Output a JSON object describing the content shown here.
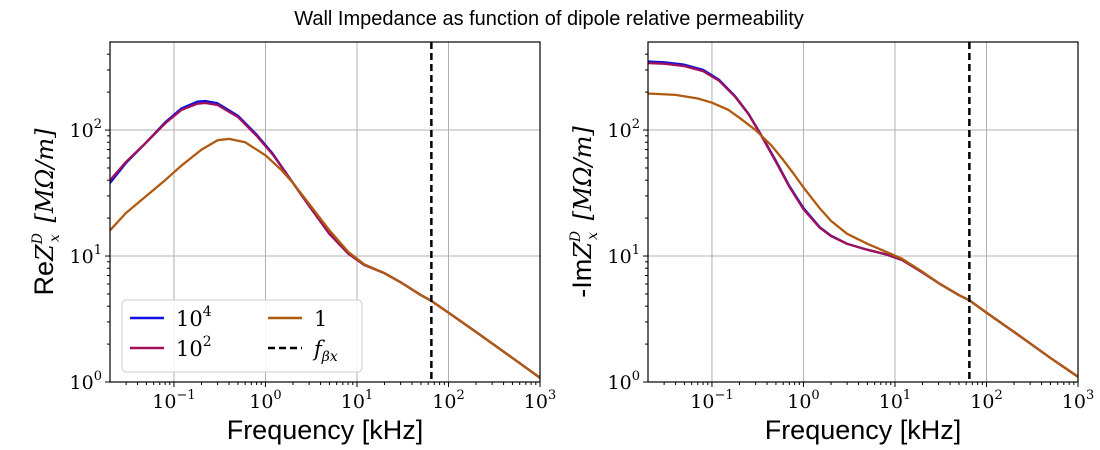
{
  "figure": {
    "suptitle": "Wall Impedance as function of dipole relative permeability"
  },
  "chart_data": [
    {
      "type": "line",
      "id": "real",
      "title": "",
      "xlabel": "Frequency [kHz]",
      "ylabel_prefix": "Re",
      "ylabel_math": "Z",
      "ylabel_sup": "D",
      "ylabel_sub": "x",
      "ylabel_unit": "[MΩ/m]",
      "xscale": "log",
      "yscale": "log",
      "xlim": [
        0.02,
        1000
      ],
      "ylim": [
        1,
        500
      ],
      "grid": true,
      "legend": {
        "placement": "lower-left",
        "ncol": 2,
        "entries": [
          {
            "base": "10",
            "exp": "4",
            "color": "#1010e0",
            "style": "solid"
          },
          {
            "base": "10",
            "exp": "2",
            "color": "#a0105a",
            "style": "solid"
          },
          {
            "base": "1",
            "exp": "",
            "color": "#b05a10",
            "style": "solid"
          },
          {
            "base": "f",
            "exp": "βx",
            "color": "#000000",
            "style": "dashed"
          }
        ]
      },
      "xticks": [
        {
          "base": "10",
          "exp": "−1",
          "value": 0.1
        },
        {
          "base": "10",
          "exp": "0",
          "value": 1
        },
        {
          "base": "10",
          "exp": "1",
          "value": 10
        },
        {
          "base": "10",
          "exp": "2",
          "value": 100
        },
        {
          "base": "10",
          "exp": "3",
          "value": 1000
        }
      ],
      "yticks": [
        {
          "base": "10",
          "exp": "0",
          "value": 1
        },
        {
          "base": "10",
          "exp": "1",
          "value": 10
        },
        {
          "base": "10",
          "exp": "2",
          "value": 100
        }
      ],
      "vline": {
        "x": 65,
        "color": "#000000",
        "style": "dashed"
      },
      "series": [
        {
          "name": "10^4",
          "color": "#1010e0",
          "x": [
            0.02,
            0.03,
            0.05,
            0.08,
            0.12,
            0.18,
            0.22,
            0.3,
            0.5,
            0.8,
            1.2,
            2,
            3,
            5,
            8,
            12,
            20,
            30,
            50,
            65,
            100,
            200,
            500,
            1000
          ],
          "y": [
            38,
            55,
            80,
            115,
            148,
            168,
            170,
            163,
            130,
            92,
            65,
            38,
            25,
            15,
            10.5,
            8.5,
            7.3,
            6.2,
            4.9,
            4.4,
            3.55,
            2.5,
            1.55,
            1.08
          ]
        },
        {
          "name": "10^2",
          "color": "#a0105a",
          "x": [
            0.02,
            0.03,
            0.05,
            0.08,
            0.12,
            0.18,
            0.22,
            0.3,
            0.5,
            0.8,
            1.2,
            2,
            3,
            5,
            8,
            12,
            20,
            30,
            50,
            65,
            100,
            200,
            500,
            1000
          ],
          "y": [
            40,
            56,
            80,
            113,
            144,
            162,
            164,
            158,
            127,
            90,
            64,
            38,
            25,
            15,
            10.5,
            8.5,
            7.3,
            6.2,
            4.9,
            4.4,
            3.55,
            2.5,
            1.55,
            1.08
          ]
        },
        {
          "name": "1",
          "color": "#b05a10",
          "x": [
            0.02,
            0.03,
            0.05,
            0.08,
            0.12,
            0.2,
            0.3,
            0.4,
            0.6,
            1,
            1.5,
            2,
            3,
            5,
            8,
            12,
            20,
            30,
            50,
            65,
            100,
            200,
            500,
            1000
          ],
          "y": [
            16,
            22,
            30,
            40,
            52,
            70,
            83,
            85,
            80,
            63,
            48,
            38,
            26,
            16,
            10.8,
            8.6,
            7.3,
            6.2,
            4.9,
            4.4,
            3.55,
            2.5,
            1.55,
            1.08
          ]
        }
      ]
    },
    {
      "type": "line",
      "id": "imag",
      "title": "",
      "xlabel": "Frequency [kHz]",
      "ylabel_prefix": "-Im",
      "ylabel_math": "Z",
      "ylabel_sup": "D",
      "ylabel_sub": "x",
      "ylabel_unit": "[MΩ/m]",
      "xscale": "log",
      "yscale": "log",
      "xlim": [
        0.02,
        1000
      ],
      "ylim": [
        1,
        500
      ],
      "grid": true,
      "xticks": [
        {
          "base": "10",
          "exp": "−1",
          "value": 0.1
        },
        {
          "base": "10",
          "exp": "0",
          "value": 1
        },
        {
          "base": "10",
          "exp": "1",
          "value": 10
        },
        {
          "base": "10",
          "exp": "2",
          "value": 100
        },
        {
          "base": "10",
          "exp": "3",
          "value": 1000
        }
      ],
      "yticks": [
        {
          "base": "10",
          "exp": "0",
          "value": 1
        },
        {
          "base": "10",
          "exp": "1",
          "value": 10
        },
        {
          "base": "10",
          "exp": "2",
          "value": 100
        }
      ],
      "vline": {
        "x": 65,
        "color": "#000000",
        "style": "dashed"
      },
      "series": [
        {
          "name": "10^4",
          "color": "#1010e0",
          "x": [
            0.02,
            0.03,
            0.05,
            0.08,
            0.12,
            0.18,
            0.25,
            0.35,
            0.5,
            0.7,
            1,
            1.5,
            2,
            3,
            5,
            8,
            12,
            20,
            30,
            50,
            65,
            100,
            200,
            500,
            1000
          ],
          "y": [
            350,
            345,
            330,
            300,
            250,
            185,
            135,
            90,
            57,
            36,
            24,
            17,
            14.5,
            12.5,
            11.2,
            10.3,
            9.3,
            7.4,
            6.1,
            4.9,
            4.45,
            3.55,
            2.5,
            1.55,
            1.1
          ]
        },
        {
          "name": "10^2",
          "color": "#a0105a",
          "x": [
            0.02,
            0.03,
            0.05,
            0.08,
            0.12,
            0.18,
            0.25,
            0.35,
            0.5,
            0.7,
            1,
            1.5,
            2,
            3,
            5,
            8,
            12,
            20,
            30,
            50,
            65,
            100,
            200,
            500,
            1000
          ],
          "y": [
            340,
            336,
            322,
            294,
            246,
            183,
            134,
            89,
            56,
            35.5,
            23.5,
            16.8,
            14.4,
            12.5,
            11.2,
            10.3,
            9.3,
            7.4,
            6.1,
            4.9,
            4.45,
            3.55,
            2.5,
            1.55,
            1.1
          ]
        },
        {
          "name": "1",
          "color": "#b05a10",
          "x": [
            0.02,
            0.04,
            0.07,
            0.1,
            0.15,
            0.2,
            0.3,
            0.45,
            0.6,
            0.8,
            1,
            1.5,
            2,
            3,
            5,
            8,
            12,
            20,
            30,
            50,
            65,
            100,
            200,
            500,
            1000
          ],
          "y": [
            195,
            190,
            178,
            165,
            145,
            125,
            100,
            75,
            58,
            44,
            35,
            24,
            19,
            15,
            12.5,
            10.8,
            9.5,
            7.5,
            6.1,
            4.9,
            4.45,
            3.55,
            2.5,
            1.55,
            1.1
          ]
        }
      ]
    }
  ]
}
